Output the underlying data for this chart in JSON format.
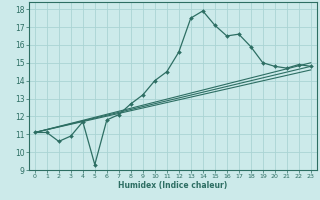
{
  "xlabel": "Humidex (Indice chaleur)",
  "bg_color": "#cceaea",
  "grid_color": "#aad4d4",
  "line_color": "#2d6e63",
  "xlim": [
    -0.5,
    23.5
  ],
  "ylim": [
    9,
    18.4
  ],
  "xticks": [
    0,
    1,
    2,
    3,
    4,
    5,
    6,
    7,
    8,
    9,
    10,
    11,
    12,
    13,
    14,
    15,
    16,
    17,
    18,
    19,
    20,
    21,
    22,
    23
  ],
  "yticks": [
    9,
    10,
    11,
    12,
    13,
    14,
    15,
    16,
    17,
    18
  ],
  "main_line_x": [
    0,
    1,
    2,
    3,
    4,
    5,
    6,
    7,
    8,
    9,
    10,
    11,
    12,
    13,
    14,
    15,
    16,
    17,
    18,
    19,
    20,
    21,
    22,
    23
  ],
  "main_line_y": [
    11.1,
    11.1,
    10.6,
    10.9,
    11.7,
    9.3,
    11.8,
    12.1,
    12.7,
    13.2,
    14.0,
    14.5,
    15.6,
    17.5,
    17.9,
    17.1,
    16.5,
    16.6,
    15.9,
    15.0,
    14.8,
    14.7,
    14.9,
    14.8
  ],
  "line2_y_start": 11.1,
  "line2_y_end": 14.8,
  "line3_y_start": 11.1,
  "line3_y_end": 15.0,
  "line4_y_start": 11.1,
  "line4_y_end": 14.6,
  "x_start": 0,
  "x_end": 23
}
